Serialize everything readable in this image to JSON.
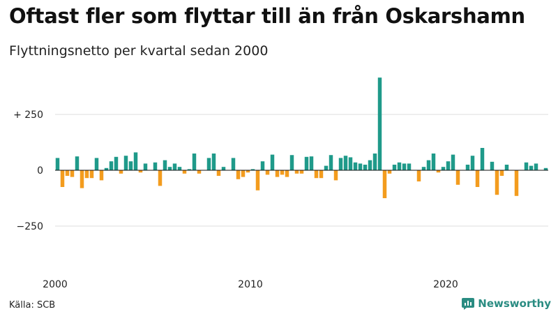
{
  "header": {
    "title": "Oftast fler som flyttar till än från Oskarshamn",
    "subtitle": "Flyttningsnetto per kvartal sedan 2000"
  },
  "footer": {
    "source": "Källa: SCB",
    "brand": "Newsworthy"
  },
  "colors": {
    "positive": "#1f9a8a",
    "negative": "#f39c1e",
    "grid": "#dddddd",
    "zero_line": "#111111",
    "brand": "#2a8c82"
  },
  "icons": {
    "brand": "newsworthy-logo-icon"
  },
  "chart_data": {
    "type": "bar",
    "title": "Oftast fler som flyttar till än från Oskarshamn",
    "subtitle": "Flyttningsnetto per kvartal sedan 2000",
    "xlabel": "",
    "ylabel": "",
    "start_year": 2000,
    "start_quarter": 1,
    "ylim": [
      -450,
      420
    ],
    "y_ticks": [
      {
        "value": 250,
        "label": "+ 250"
      },
      {
        "value": 0,
        "label": "0"
      },
      {
        "value": -250,
        "label": "−250"
      }
    ],
    "x_ticks": [
      {
        "index": 0,
        "label": "2000"
      },
      {
        "index": 40,
        "label": "2010"
      },
      {
        "index": 80,
        "label": "2020"
      }
    ],
    "grid": true,
    "values": [
      55,
      -75,
      -25,
      -30,
      62,
      -80,
      -35,
      -35,
      55,
      -45,
      10,
      40,
      60,
      -15,
      65,
      40,
      80,
      -10,
      30,
      0,
      35,
      -70,
      45,
      15,
      30,
      15,
      -15,
      5,
      75,
      -15,
      0,
      55,
      75,
      -25,
      15,
      0,
      55,
      -40,
      -30,
      -10,
      5,
      -90,
      40,
      -20,
      70,
      -30,
      -20,
      -30,
      68,
      -15,
      -15,
      60,
      62,
      -35,
      -35,
      20,
      68,
      -45,
      55,
      65,
      58,
      35,
      30,
      25,
      45,
      75,
      415,
      -125,
      -15,
      25,
      35,
      30,
      30,
      0,
      -50,
      15,
      45,
      75,
      -10,
      15,
      40,
      70,
      -65,
      0,
      25,
      65,
      -75,
      100,
      0,
      38,
      -110,
      -25,
      25,
      0,
      -115,
      0,
      35,
      20,
      30,
      0,
      10
    ]
  }
}
